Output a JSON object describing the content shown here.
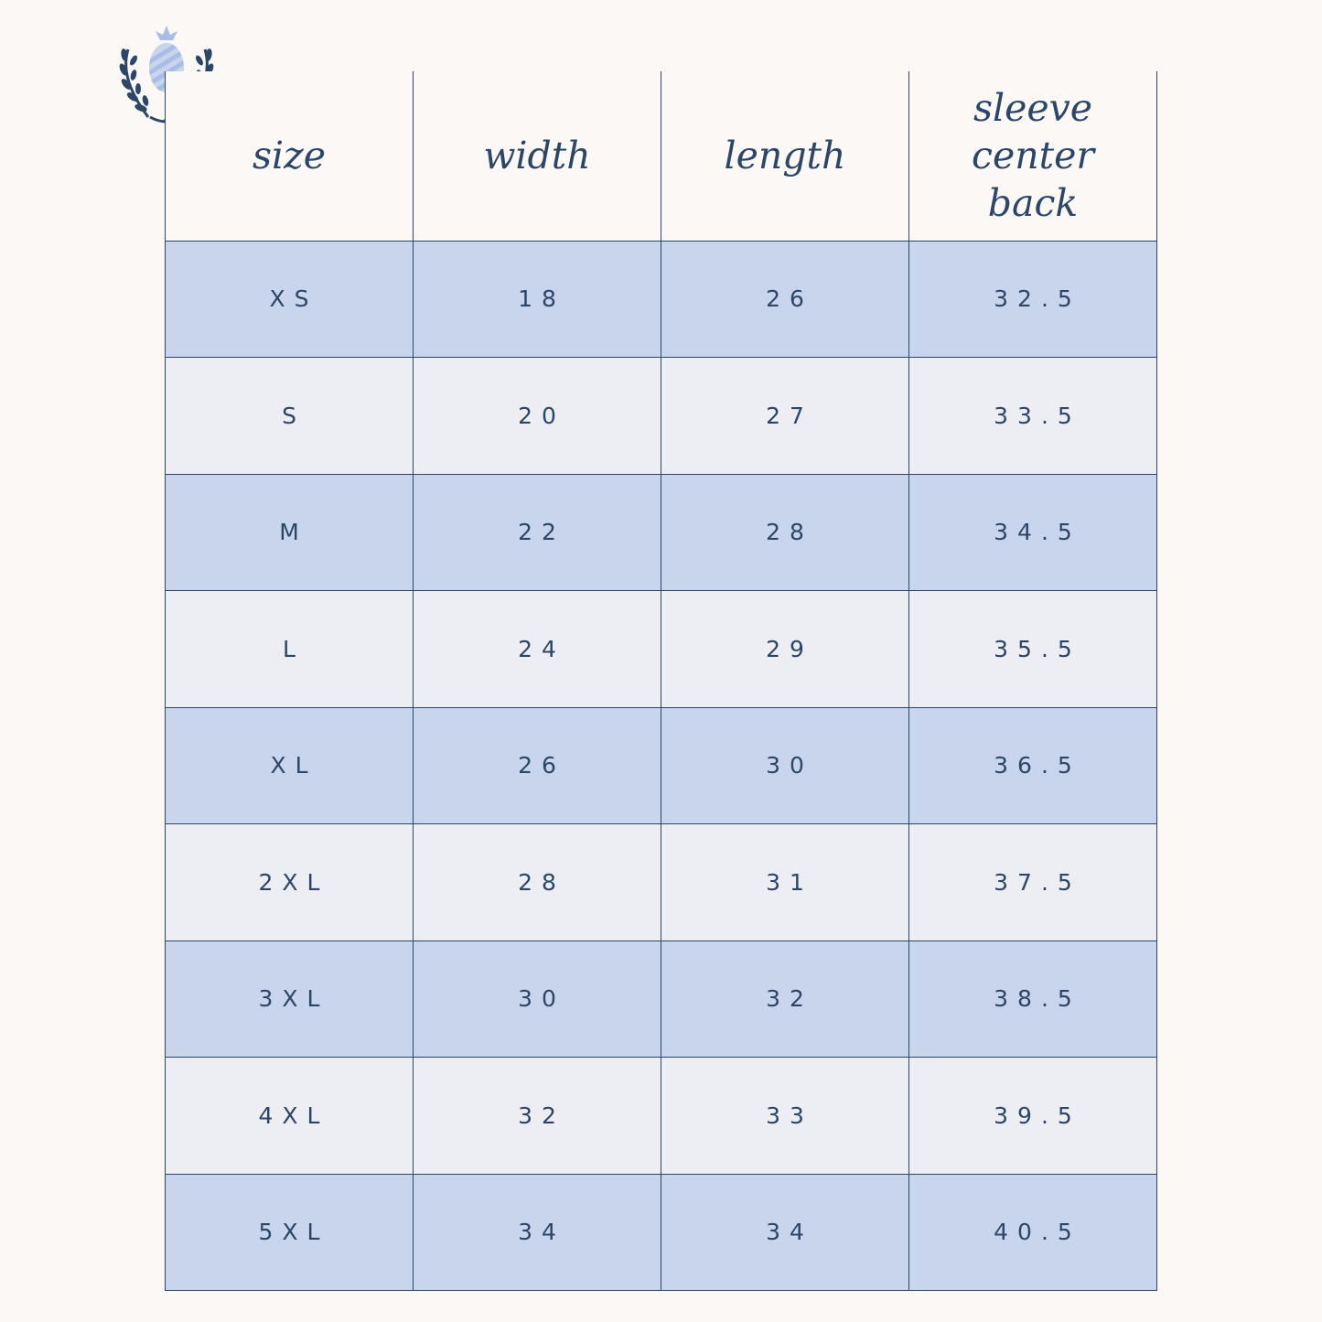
{
  "logo": {
    "icon": "pineapple-laurel-icon"
  },
  "table": {
    "headers": [
      "size",
      "width",
      "length",
      "sleeve center back"
    ],
    "rows": [
      [
        "XS",
        "18",
        "26",
        "32.5"
      ],
      [
        "S",
        "20",
        "27",
        "33.5"
      ],
      [
        "M",
        "22",
        "28",
        "34.5"
      ],
      [
        "L",
        "24",
        "29",
        "35.5"
      ],
      [
        "XL",
        "26",
        "30",
        "36.5"
      ],
      [
        "2XL",
        "28",
        "31",
        "37.5"
      ],
      [
        "3XL",
        "30",
        "32",
        "38.5"
      ],
      [
        "4XL",
        "32",
        "33",
        "39.5"
      ],
      [
        "5XL",
        "34",
        "34",
        "40.5"
      ]
    ]
  },
  "colors": {
    "ink": "#2c4668",
    "background": "#fbf8f6",
    "row_dark": "#c9d5ec",
    "row_light": "#eceef4",
    "accent_light": "#a9bde6"
  }
}
